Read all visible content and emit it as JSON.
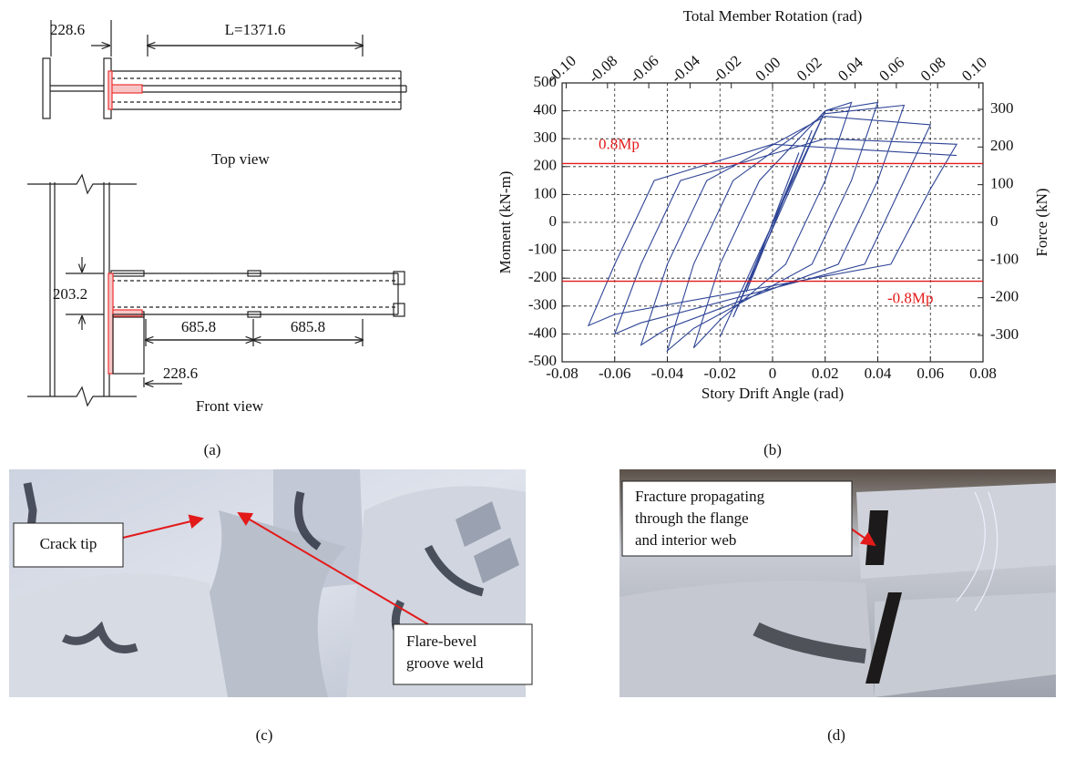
{
  "panel_a": {
    "top_view": {
      "label": "Top view",
      "dim_column": "228.6",
      "dim_length": "L=1371.6"
    },
    "front_view": {
      "label": "Front view",
      "dim_depth": "203.2",
      "dim_left": "685.8",
      "dim_right": "685.8",
      "dim_offset": "228.6"
    }
  },
  "chart_data": {
    "type": "line",
    "x_label": "Story Drift Angle (rad)",
    "y_label": "Moment (kN-m)",
    "y2_label": "Force (kN)",
    "x2_label": "Total Member Rotation (rad)",
    "xlim": [
      -0.08,
      0.08
    ],
    "xticks": [
      -0.08,
      -0.06,
      -0.04,
      -0.02,
      0,
      0.02,
      0.04,
      0.06,
      0.08
    ],
    "ylim": [
      -500,
      500
    ],
    "yticks": [
      -500,
      -400,
      -300,
      -200,
      -100,
      0,
      100,
      200,
      300,
      400,
      500
    ],
    "y2lim": [
      -370,
      370
    ],
    "y2ticks": [
      -300,
      -200,
      -100,
      0,
      100,
      200,
      300
    ],
    "x2lim": [
      -0.102,
      0.102
    ],
    "x2ticks": [
      {
        "value": -0.1,
        "label": "-0.10"
      },
      {
        "value": -0.08,
        "label": "-0.08"
      },
      {
        "value": -0.06,
        "label": "-0.06"
      },
      {
        "value": -0.04,
        "label": "-0.04"
      },
      {
        "value": -0.02,
        "label": "-0.02"
      },
      {
        "value": 0,
        "label": "0.00"
      },
      {
        "value": 0.02,
        "label": "0.02"
      },
      {
        "value": 0.04,
        "label": "0.04"
      },
      {
        "value": 0.06,
        "label": "0.06"
      },
      {
        "value": 0.08,
        "label": "0.08"
      },
      {
        "value": 0.1,
        "label": "0.10"
      }
    ],
    "grid": true,
    "reference_lines": [
      {
        "value": 211,
        "label": "0.8Mp",
        "color": "#e31a1a"
      },
      {
        "value": -211,
        "label": "-0.8Mp",
        "color": "#e31a1a"
      }
    ],
    "series": [
      {
        "color": "#2f4596",
        "x": [
          0,
          0.01,
          -0.01,
          0.015,
          -0.015,
          0.02,
          -0.02,
          0.02,
          0.03,
          0.02,
          0.005,
          -0.02,
          -0.03,
          -0.02,
          -0.005,
          0.02,
          0.04,
          0.03,
          0.015,
          -0.03,
          -0.04,
          -0.03,
          -0.015,
          0.02,
          0.05,
          0.04,
          0.025,
          -0.04,
          -0.05,
          -0.04,
          -0.025,
          0.02,
          0.06,
          0.05,
          0.035,
          -0.05,
          -0.06,
          -0.05,
          -0.035,
          0.02,
          0.07,
          0.06,
          0.045,
          -0.06,
          -0.07,
          -0.06,
          -0.045,
          0,
          0.07
        ],
        "values": [
          0,
          250,
          -250,
          330,
          -340,
          400,
          -410,
          400,
          430,
          150,
          -150,
          -350,
          -450,
          -150,
          150,
          400,
          430,
          150,
          -150,
          -380,
          -460,
          -150,
          150,
          390,
          420,
          150,
          -150,
          -380,
          -440,
          -150,
          150,
          380,
          350,
          150,
          -150,
          -360,
          -400,
          -150,
          150,
          300,
          280,
          120,
          -150,
          -330,
          -370,
          -150,
          150,
          280,
          240
        ]
      }
    ]
  },
  "panel_c": {
    "callout_crack": "Crack tip",
    "callout_weld": [
      "Flare-bevel",
      "groove weld"
    ]
  },
  "panel_d": {
    "callout": [
      "Fracture propagating",
      "through the flange",
      "and interior web"
    ]
  },
  "captions": [
    "(a)",
    "(b)",
    "(c)",
    "(d)"
  ]
}
